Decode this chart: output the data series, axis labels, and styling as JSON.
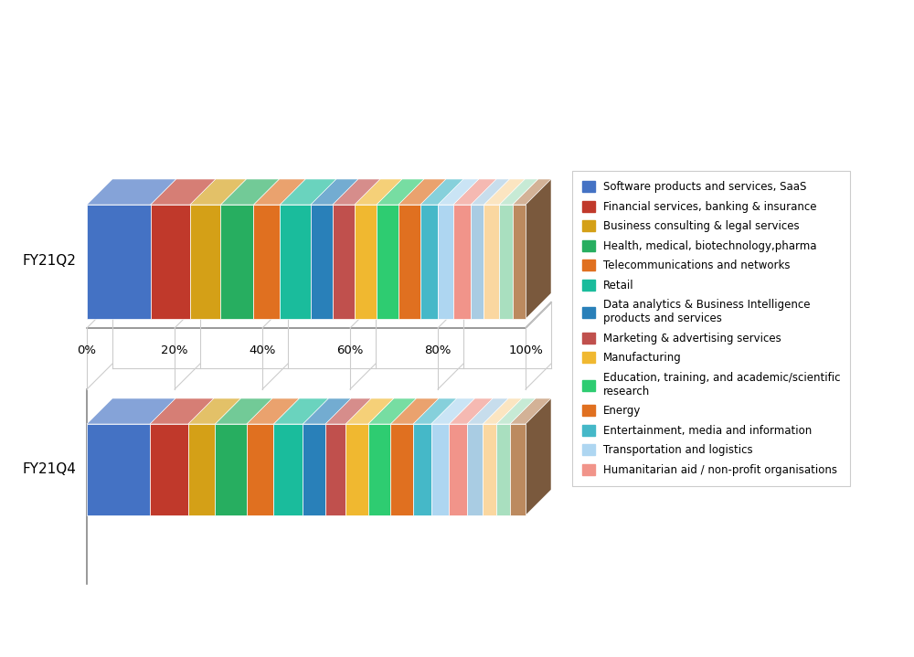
{
  "legend_labels": [
    "Software products and services, SaaS",
    "Financial services, banking & insurance",
    "Business consulting & legal services",
    "Health, medical, biotechnology,pharma",
    "Telecommunications and networks",
    "Retail",
    "Data analytics & Business Intelligence\nproducts and services",
    "Marketing & advertising services",
    "Manufacturing",
    "Education, training, and academic/scientific\nresearch",
    "Energy",
    "Entertainment, media and information",
    "Transportation and logistics",
    "Humanitarian aid / non-profit organisations"
  ],
  "seg_colors": [
    "#4472C4",
    "#C0392B",
    "#D4A017",
    "#27AE60",
    "#E07020",
    "#1ABC9C",
    "#2980B9",
    "#C0504D",
    "#F0B830",
    "#2ECC71",
    "#E07020",
    "#45B8C8",
    "#AED6F1",
    "#F1948A",
    "#A9CCE3",
    "#FAD7A0",
    "#A9DFBF",
    "#BC8A5F"
  ],
  "legend_colors": [
    "#4472C4",
    "#C0392B",
    "#D4A017",
    "#27AE60",
    "#E07020",
    "#1ABC9C",
    "#2980B9",
    "#C0504D",
    "#F0B830",
    "#2ECC71",
    "#E07020",
    "#45B8C8",
    "#AED6F1",
    "#F1948A"
  ],
  "q4_values": [
    14.0,
    8.5,
    6.0,
    7.0,
    6.0,
    6.5,
    5.0,
    4.5,
    5.0,
    5.0,
    5.0,
    4.0,
    4.0,
    4.0,
    3.5,
    3.0,
    3.0,
    3.5
  ],
  "q2_values": [
    14.5,
    9.0,
    7.0,
    7.5,
    6.0,
    7.0,
    5.0,
    5.0,
    5.0,
    5.0,
    5.0,
    4.0,
    3.5,
    4.0,
    3.0,
    3.5,
    3.0,
    3.0
  ],
  "bar_labels": [
    "FY21Q4",
    "FY21Q2"
  ],
  "xtick_labels": [
    "0%",
    "20%",
    "40%",
    "60%",
    "80%",
    "100%"
  ],
  "xtick_vals": [
    0,
    20,
    40,
    60,
    80,
    100
  ],
  "background_color": "#FFFFFF"
}
